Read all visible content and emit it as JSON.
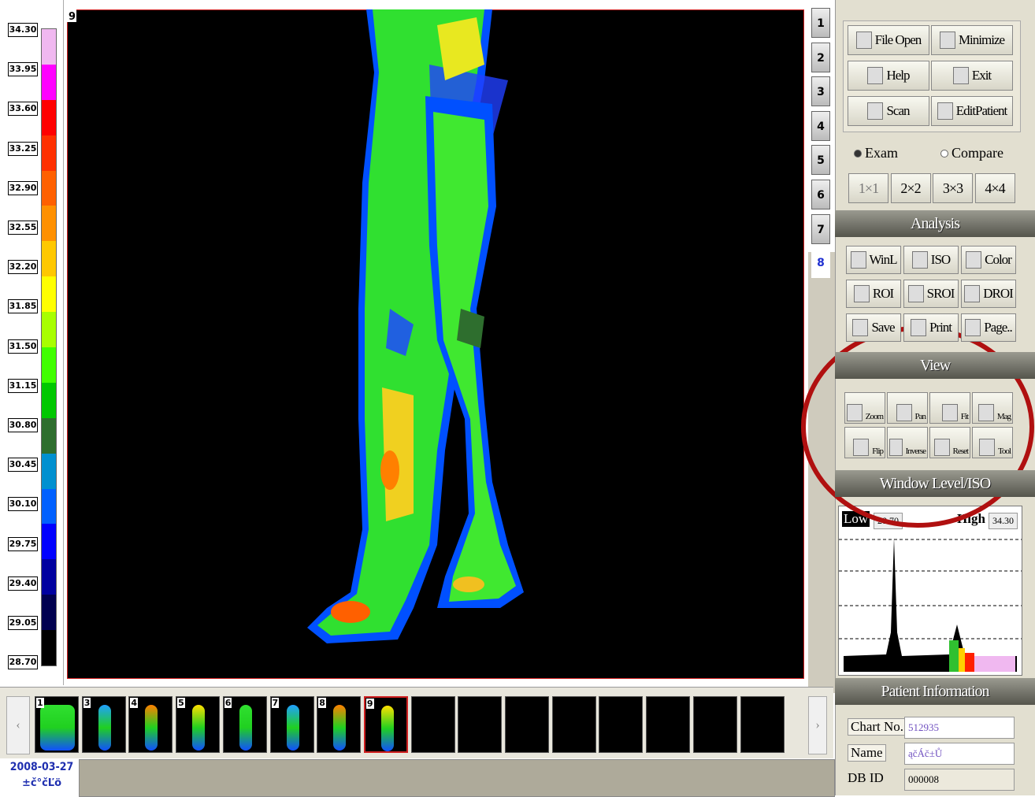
{
  "colorbar": {
    "labels": [
      "34.30",
      "33.95",
      "33.60",
      "33.25",
      "32.90",
      "32.55",
      "32.20",
      "31.85",
      "31.50",
      "31.15",
      "30.80",
      "30.45",
      "30.10",
      "29.75",
      "29.40",
      "29.05",
      "28.70"
    ],
    "colors": [
      "#f0b8f0",
      "#ff00ff",
      "#ff0000",
      "#ff3000",
      "#ff6000",
      "#ff9000",
      "#ffc800",
      "#ffff00",
      "#a8ff00",
      "#40ff00",
      "#00c800",
      "#2e6e2e",
      "#0090d0",
      "#0060ff",
      "#0000ff",
      "#0000a0",
      "#000050",
      "#000000"
    ]
  },
  "image": {
    "label": "9"
  },
  "tabs": [
    "1",
    "2",
    "3",
    "4",
    "5",
    "6",
    "7",
    "8"
  ],
  "buttons": [
    "File Open",
    "Minimize",
    "Help",
    "Exit",
    "Scan",
    "EditPatient"
  ],
  "mode": [
    "Exam",
    "Compare"
  ],
  "layouts": [
    "1×1",
    "2×2",
    "3×3",
    "4×4"
  ],
  "analysis": {
    "title": "Analysis",
    "buttons": [
      "WinL",
      "ISO",
      "Color",
      "ROI",
      "SROI",
      "DROI",
      "Save",
      "Print",
      "Page.."
    ]
  },
  "view": {
    "title": "View",
    "buttons": [
      "Zoom",
      "Pan",
      "Fit",
      "Mag",
      "Flip",
      "Inverse",
      "Reset",
      "Tool"
    ]
  },
  "window_level": {
    "title": "Window Level/ISO",
    "low_label": "Low",
    "low": "28.70",
    "high_label": "High",
    "high": "34.30"
  },
  "patient": {
    "title": "Patient Information",
    "fields": [
      {
        "label": "Chart No.",
        "value": "512935"
      },
      {
        "label": "Name",
        "value": "ąčÁč±Ů"
      },
      {
        "label": "DB ID",
        "value": "000008"
      }
    ]
  },
  "thumbnails": [
    "1",
    "3",
    "4",
    "5",
    "6",
    "7",
    "8",
    "9"
  ],
  "footer": {
    "date": "2008-03-27",
    "text": "±č°čĽö"
  }
}
